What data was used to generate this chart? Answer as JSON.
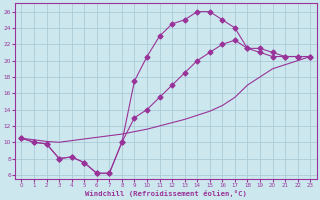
{
  "xlabel": "Windchill (Refroidissement éolien,°C)",
  "bg_color": "#cce8ee",
  "grid_color": "#aaccd8",
  "line_color": "#993399",
  "xlim": [
    -0.5,
    23.5
  ],
  "ylim": [
    5.5,
    27
  ],
  "xticks": [
    0,
    1,
    2,
    3,
    4,
    5,
    6,
    7,
    8,
    9,
    10,
    11,
    12,
    13,
    14,
    15,
    16,
    17,
    18,
    19,
    20,
    21,
    22,
    23
  ],
  "yticks": [
    6,
    8,
    10,
    12,
    14,
    16,
    18,
    20,
    22,
    24,
    26
  ],
  "curve1_x": [
    0,
    1,
    2,
    3,
    4,
    5,
    6,
    7,
    8,
    9,
    10,
    11,
    12,
    13,
    14,
    15,
    16,
    17,
    18,
    19,
    20,
    21,
    22,
    23
  ],
  "curve1_y": [
    10.5,
    10.0,
    9.8,
    8.0,
    8.2,
    7.5,
    6.2,
    6.2,
    10.0,
    17.5,
    20.5,
    23.0,
    24.5,
    25.0,
    26.0,
    26.0,
    25.0,
    24.0,
    21.5,
    21.0,
    20.5,
    20.5,
    20.5,
    20.5
  ],
  "curve2_x": [
    0,
    1,
    2,
    3,
    4,
    5,
    6,
    7,
    8,
    9,
    10,
    11,
    12,
    13,
    14,
    15,
    16,
    17,
    18,
    19,
    20,
    21,
    22,
    23
  ],
  "curve2_y": [
    10.5,
    10.0,
    9.8,
    8.0,
    8.2,
    7.5,
    6.2,
    6.2,
    10.0,
    13.0,
    14.0,
    15.5,
    17.0,
    18.5,
    20.0,
    21.0,
    22.0,
    22.5,
    21.5,
    21.5,
    21.0,
    20.5,
    20.5,
    20.5
  ],
  "curve3_x": [
    0,
    1,
    2,
    3,
    4,
    5,
    6,
    7,
    8,
    9,
    10,
    11,
    12,
    13,
    14,
    15,
    16,
    17,
    18,
    19,
    20,
    21,
    22,
    23
  ],
  "curve3_y": [
    10.5,
    10.3,
    10.1,
    10.0,
    10.2,
    10.4,
    10.6,
    10.8,
    11.0,
    11.3,
    11.6,
    12.0,
    12.4,
    12.8,
    13.3,
    13.8,
    14.5,
    15.5,
    17.0,
    18.0,
    19.0,
    19.5,
    20.0,
    20.5
  ]
}
